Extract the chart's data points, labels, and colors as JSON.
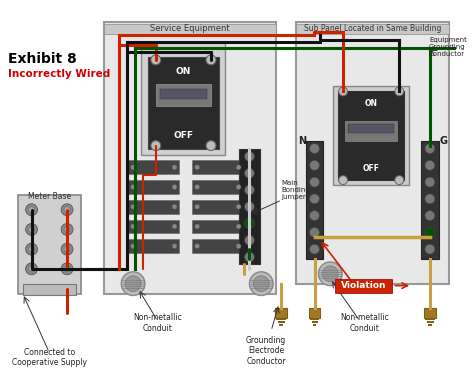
{
  "bg_color": "#ffffff",
  "title": "Exhibit 8",
  "subtitle": "Incorrectly Wired",
  "title_color": "#000000",
  "subtitle_color": "#cc0000",
  "label_service": "Service Equipment",
  "label_subpanel": "Sub Panel Located in Same Building",
  "label_meter": "Meter Base",
  "label_nonmetallic1": "Non-metallic\nConduit",
  "label_nonmetallic2": "Non-metallic\nConduit",
  "label_grounding": "Grounding\nElectrode\nConductor",
  "label_connected": "Connected to\nCooperative Supply",
  "label_bonding": "Main\nBonding\nJumper",
  "label_equipment_gnd": "Equipment\nGrounding\nConductor",
  "label_violation": "Violation",
  "label_N": "N",
  "label_G": "G",
  "wire_red": "#cc2200",
  "wire_black": "#111111",
  "wire_green": "#005500",
  "wire_white": "#dddddd",
  "wire_bare": "#c8a040",
  "panel_fill": "#e0e0e0",
  "panel_border": "#999999",
  "panel_dark": "#2a2a2a",
  "breaker_outer": "#cccccc",
  "breaker_fill": "#888888",
  "terminal_fill": "#aaaaaa"
}
